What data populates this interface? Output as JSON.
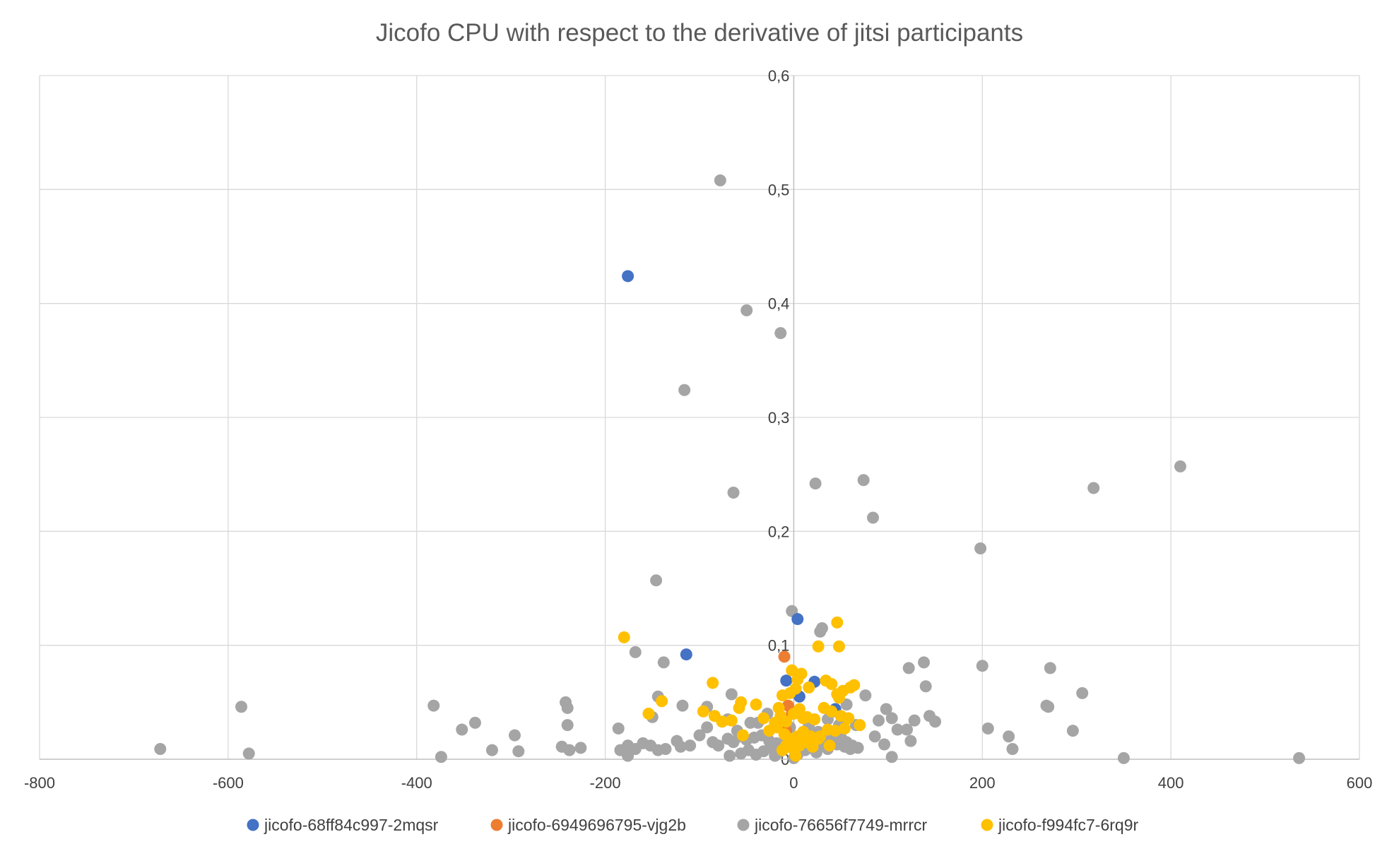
{
  "chart_data": {
    "type": "scatter",
    "title": "Jicofo CPU with respect to the derivative of jitsi participants",
    "xlabel": "",
    "ylabel": "",
    "xlim": [
      -800,
      600
    ],
    "ylim": [
      0,
      0.6
    ],
    "x_ticks": [
      {
        "value": -800,
        "label": "-800"
      },
      {
        "value": -600,
        "label": "-600"
      },
      {
        "value": -400,
        "label": "-400"
      },
      {
        "value": -200,
        "label": "-200"
      },
      {
        "value": 0,
        "label": "0"
      },
      {
        "value": 200,
        "label": "200"
      },
      {
        "value": 400,
        "label": "400"
      },
      {
        "value": 600,
        "label": "600"
      }
    ],
    "y_ticks": [
      {
        "value": 0,
        "label": "0"
      },
      {
        "value": 0.1,
        "label": "0,1"
      },
      {
        "value": 0.2,
        "label": "0,2"
      },
      {
        "value": 0.3,
        "label": "0,3"
      },
      {
        "value": 0.4,
        "label": "0,4"
      },
      {
        "value": 0.5,
        "label": "0,5"
      },
      {
        "value": 0.6,
        "label": "0,6"
      }
    ],
    "grid": true,
    "legend_position": "bottom",
    "series": [
      {
        "name": "jicofo-76656f7749-mrrcr",
        "color": "#A5A5A5",
        "points": [
          [
            -78,
            0.508
          ],
          [
            -50,
            0.394
          ],
          [
            -14,
            0.374
          ],
          [
            -116,
            0.324
          ],
          [
            -64,
            0.234
          ],
          [
            23,
            0.242
          ],
          [
            74,
            0.245
          ],
          [
            84,
            0.212
          ],
          [
            318,
            0.238
          ],
          [
            410,
            0.257
          ],
          [
            198,
            0.185
          ],
          [
            -146,
            0.157
          ],
          [
            -2,
            0.13
          ],
          [
            30,
            0.115
          ],
          [
            28,
            0.112
          ],
          [
            -168,
            0.094
          ],
          [
            -138,
            0.085
          ],
          [
            200,
            0.082
          ],
          [
            122,
            0.08
          ],
          [
            138,
            0.085
          ],
          [
            272,
            0.08
          ],
          [
            140,
            0.064
          ],
          [
            -66,
            0.057
          ],
          [
            -144,
            0.055
          ],
          [
            76,
            0.056
          ],
          [
            306,
            0.058
          ],
          [
            -586,
            0.046
          ],
          [
            -382,
            0.047
          ],
          [
            -242,
            0.05
          ],
          [
            -240,
            0.045
          ],
          [
            -118,
            0.047
          ],
          [
            -92,
            0.046
          ],
          [
            56,
            0.048
          ],
          [
            98,
            0.044
          ],
          [
            268,
            0.047
          ],
          [
            270,
            0.046
          ],
          [
            -150,
            0.037
          ],
          [
            -240,
            0.03
          ],
          [
            -338,
            0.032
          ],
          [
            -352,
            0.026
          ],
          [
            -186,
            0.027
          ],
          [
            -92,
            0.028
          ],
          [
            -70,
            0.035
          ],
          [
            90,
            0.034
          ],
          [
            104,
            0.036
          ],
          [
            128,
            0.034
          ],
          [
            144,
            0.038
          ],
          [
            150,
            0.033
          ],
          [
            206,
            0.027
          ],
          [
            296,
            0.025
          ],
          [
            -296,
            0.021
          ],
          [
            -124,
            0.016
          ],
          [
            -100,
            0.021
          ],
          [
            86,
            0.02
          ],
          [
            124,
            0.016
          ],
          [
            110,
            0.026
          ],
          [
            120,
            0.026
          ],
          [
            228,
            0.02
          ],
          [
            -672,
            0.009
          ],
          [
            -578,
            0.005
          ],
          [
            -374,
            0.002
          ],
          [
            -320,
            0.008
          ],
          [
            -292,
            0.007
          ],
          [
            -246,
            0.011
          ],
          [
            -238,
            0.008
          ],
          [
            -226,
            0.01
          ],
          [
            -184,
            0.008
          ],
          [
            -176,
            0.012
          ],
          [
            -168,
            0.009
          ],
          [
            -160,
            0.014
          ],
          [
            -152,
            0.012
          ],
          [
            -144,
            0.008
          ],
          [
            -136,
            0.009
          ],
          [
            -120,
            0.011
          ],
          [
            -110,
            0.012
          ],
          [
            -86,
            0.015
          ],
          [
            -80,
            0.012
          ],
          [
            -70,
            0.018
          ],
          [
            -64,
            0.015
          ],
          [
            -58,
            0.02
          ],
          [
            -50,
            0.017
          ],
          [
            -42,
            0.019
          ],
          [
            -34,
            0.021
          ],
          [
            -26,
            0.016
          ],
          [
            -18,
            0.014
          ],
          [
            -10,
            0.012
          ],
          [
            -8,
            0.02
          ],
          [
            -4,
            0.018
          ],
          [
            2,
            0.015
          ],
          [
            8,
            0.02
          ],
          [
            14,
            0.018
          ],
          [
            20,
            0.022
          ],
          [
            26,
            0.024
          ],
          [
            32,
            0.02
          ],
          [
            38,
            0.018
          ],
          [
            44,
            0.022
          ],
          [
            50,
            0.019
          ],
          [
            56,
            0.015
          ],
          [
            62,
            0.012
          ],
          [
            68,
            0.01
          ],
          [
            -56,
            0.005
          ],
          [
            -48,
            0.008
          ],
          [
            -40,
            0.004
          ],
          [
            -32,
            0.007
          ],
          [
            -24,
            0.01
          ],
          [
            -16,
            0.006
          ],
          [
            4,
            0.004
          ],
          [
            12,
            0.008
          ],
          [
            18,
            0.01
          ],
          [
            24,
            0.006
          ],
          [
            30,
            0.012
          ],
          [
            36,
            0.009
          ],
          [
            46,
            0.013
          ],
          [
            54,
            0.011
          ],
          [
            60,
            0.009
          ],
          [
            96,
            0.013
          ],
          [
            104,
            0.002
          ],
          [
            232,
            0.009
          ],
          [
            350,
            0.001
          ],
          [
            536,
            0.001
          ],
          [
            -176,
            0.003
          ],
          [
            -68,
            0.003
          ],
          [
            -20,
            0.003
          ],
          [
            0,
            0.001
          ],
          [
            -38,
            0.032
          ],
          [
            36,
            0.035
          ],
          [
            48,
            0.03
          ],
          [
            -4,
            0.028
          ],
          [
            -60,
            0.025
          ],
          [
            42,
            0.042
          ],
          [
            -28,
            0.04
          ],
          [
            66,
            0.03
          ],
          [
            -46,
            0.032
          ],
          [
            16,
            0.03
          ]
        ]
      },
      {
        "name": "jicofo-68ff84c997-2mqsr",
        "color": "#4472C4",
        "points": [
          [
            -176,
            0.424
          ],
          [
            4,
            0.123
          ],
          [
            -114,
            0.092
          ],
          [
            -8,
            0.069
          ],
          [
            22,
            0.068
          ],
          [
            44,
            0.044
          ],
          [
            6,
            0.055
          ]
        ]
      },
      {
        "name": "jicofo-6949696795-vjg2b",
        "color": "#ED7D31",
        "points": [
          [
            -10,
            0.09
          ],
          [
            -6,
            0.047
          ],
          [
            -2,
            0.04
          ],
          [
            -8,
            0.025
          ]
        ]
      },
      {
        "name": "jicofo-f994fc7-6rq9r",
        "color": "#FFC000",
        "points": [
          [
            -180,
            0.107
          ],
          [
            46,
            0.12
          ],
          [
            26,
            0.099
          ],
          [
            48,
            0.099
          ],
          [
            -86,
            0.067
          ],
          [
            -2,
            0.078
          ],
          [
            -12,
            0.056
          ],
          [
            2,
            0.062
          ],
          [
            8,
            0.075
          ],
          [
            16,
            0.063
          ],
          [
            4,
            0.07
          ],
          [
            34,
            0.069
          ],
          [
            40,
            0.066
          ],
          [
            -4,
            0.058
          ],
          [
            60,
            0.063
          ],
          [
            64,
            0.065
          ],
          [
            46,
            0.057
          ],
          [
            48,
            0.054
          ],
          [
            52,
            0.06
          ],
          [
            -56,
            0.05
          ],
          [
            -40,
            0.048
          ],
          [
            -84,
            0.038
          ],
          [
            -96,
            0.042
          ],
          [
            -154,
            0.04
          ],
          [
            -76,
            0.033
          ],
          [
            -66,
            0.034
          ],
          [
            -58,
            0.045
          ],
          [
            -16,
            0.045
          ],
          [
            -14,
            0.038
          ],
          [
            -8,
            0.033
          ],
          [
            0,
            0.04
          ],
          [
            6,
            0.044
          ],
          [
            14,
            0.037
          ],
          [
            22,
            0.035
          ],
          [
            32,
            0.045
          ],
          [
            40,
            0.042
          ],
          [
            50,
            0.038
          ],
          [
            58,
            0.036
          ],
          [
            -140,
            0.051
          ],
          [
            -32,
            0.036
          ],
          [
            -26,
            0.025
          ],
          [
            -18,
            0.028
          ],
          [
            -10,
            0.022
          ],
          [
            -4,
            0.018
          ],
          [
            4,
            0.02
          ],
          [
            10,
            0.024
          ],
          [
            18,
            0.02
          ],
          [
            26,
            0.018
          ],
          [
            36,
            0.026
          ],
          [
            44,
            0.025
          ],
          [
            54,
            0.027
          ],
          [
            70,
            0.03
          ],
          [
            -54,
            0.021
          ],
          [
            -2,
            0.01
          ],
          [
            6,
            0.012
          ],
          [
            14,
            0.015
          ],
          [
            -12,
            0.008
          ],
          [
            20,
            0.011
          ],
          [
            38,
            0.012
          ],
          [
            2,
            0.003
          ],
          [
            -8,
            0.012
          ],
          [
            28,
            0.02
          ],
          [
            -20,
            0.032
          ],
          [
            10,
            0.036
          ]
        ]
      }
    ]
  }
}
